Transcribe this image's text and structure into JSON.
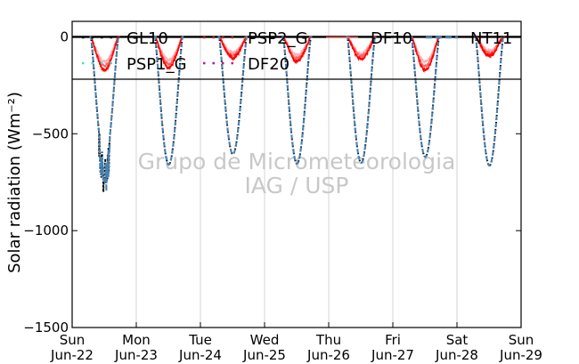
{
  "watermark": {
    "line1": "Grupo de Micrometeorologia",
    "line2": "IAG / USP"
  },
  "chart_data": {
    "type": "line",
    "ylabel": "Solar radiation ($Wm^{-2}$)",
    "ylabel_display": "Solar radiation (Wm⁻²)",
    "ylim": [
      -1500,
      80
    ],
    "y_ticks": [
      0,
      -500,
      -1000,
      -1500
    ],
    "y_tick_labels": [
      "0",
      "−500",
      "−1000",
      "−1500"
    ],
    "xlim": [
      0,
      7
    ],
    "x_ticks": [
      0,
      1,
      2,
      3,
      4,
      5,
      6,
      7
    ],
    "x_tick_labels": [
      [
        "Sun",
        "Jun-22"
      ],
      [
        "Mon",
        "Jun-23"
      ],
      [
        "Tue",
        "Jun-24"
      ],
      [
        "Wed",
        "Jun-25"
      ],
      [
        "Thu",
        "Jun-26"
      ],
      [
        "Fri",
        "Jun-27"
      ],
      [
        "Sat",
        "Jun-28"
      ],
      [
        "Sun",
        "Jun-29"
      ]
    ],
    "grid": "vertical",
    "legend_placement": "top",
    "days": [
      {
        "date": "Jun-22",
        "peak_global": -650,
        "peak_diffuse": -150,
        "noon_min": -750
      },
      {
        "date": "Jun-23",
        "peak_global": -660,
        "peak_diffuse": -140
      },
      {
        "date": "Jun-24",
        "peak_global": -605,
        "peak_diffuse": -95
      },
      {
        "date": "Jun-25",
        "peak_global": -655,
        "peak_diffuse": -110
      },
      {
        "date": "Jun-26",
        "peak_global": -650,
        "peak_diffuse": -100
      },
      {
        "date": "Jun-27",
        "peak_global": -620,
        "peak_diffuse": -150
      },
      {
        "date": "Jun-28",
        "peak_global": -665,
        "peak_diffuse": -85
      }
    ],
    "series": [
      {
        "name": "GL10",
        "style": "dotted",
        "color": "#000000",
        "component": "global"
      },
      {
        "name": "PSP1_G",
        "style": "dotted",
        "color": "#40e0d0",
        "component": "global"
      },
      {
        "name": "PSP2_G",
        "style": "dotted",
        "color": "#b22222",
        "component": "global"
      },
      {
        "name": "DF20",
        "style": "dotted",
        "color": "#c71585",
        "component": "diffuse"
      },
      {
        "name": "DF10",
        "style": "solid",
        "color": "#ff6060",
        "component": "diffuse"
      },
      {
        "name": "NT11",
        "style": "dashed",
        "color": "#4682b4",
        "component": "global"
      }
    ],
    "legend_order": [
      "GL10",
      "PSP2_G",
      "DF10",
      "NT11",
      "PSP1_G",
      "DF20"
    ]
  }
}
